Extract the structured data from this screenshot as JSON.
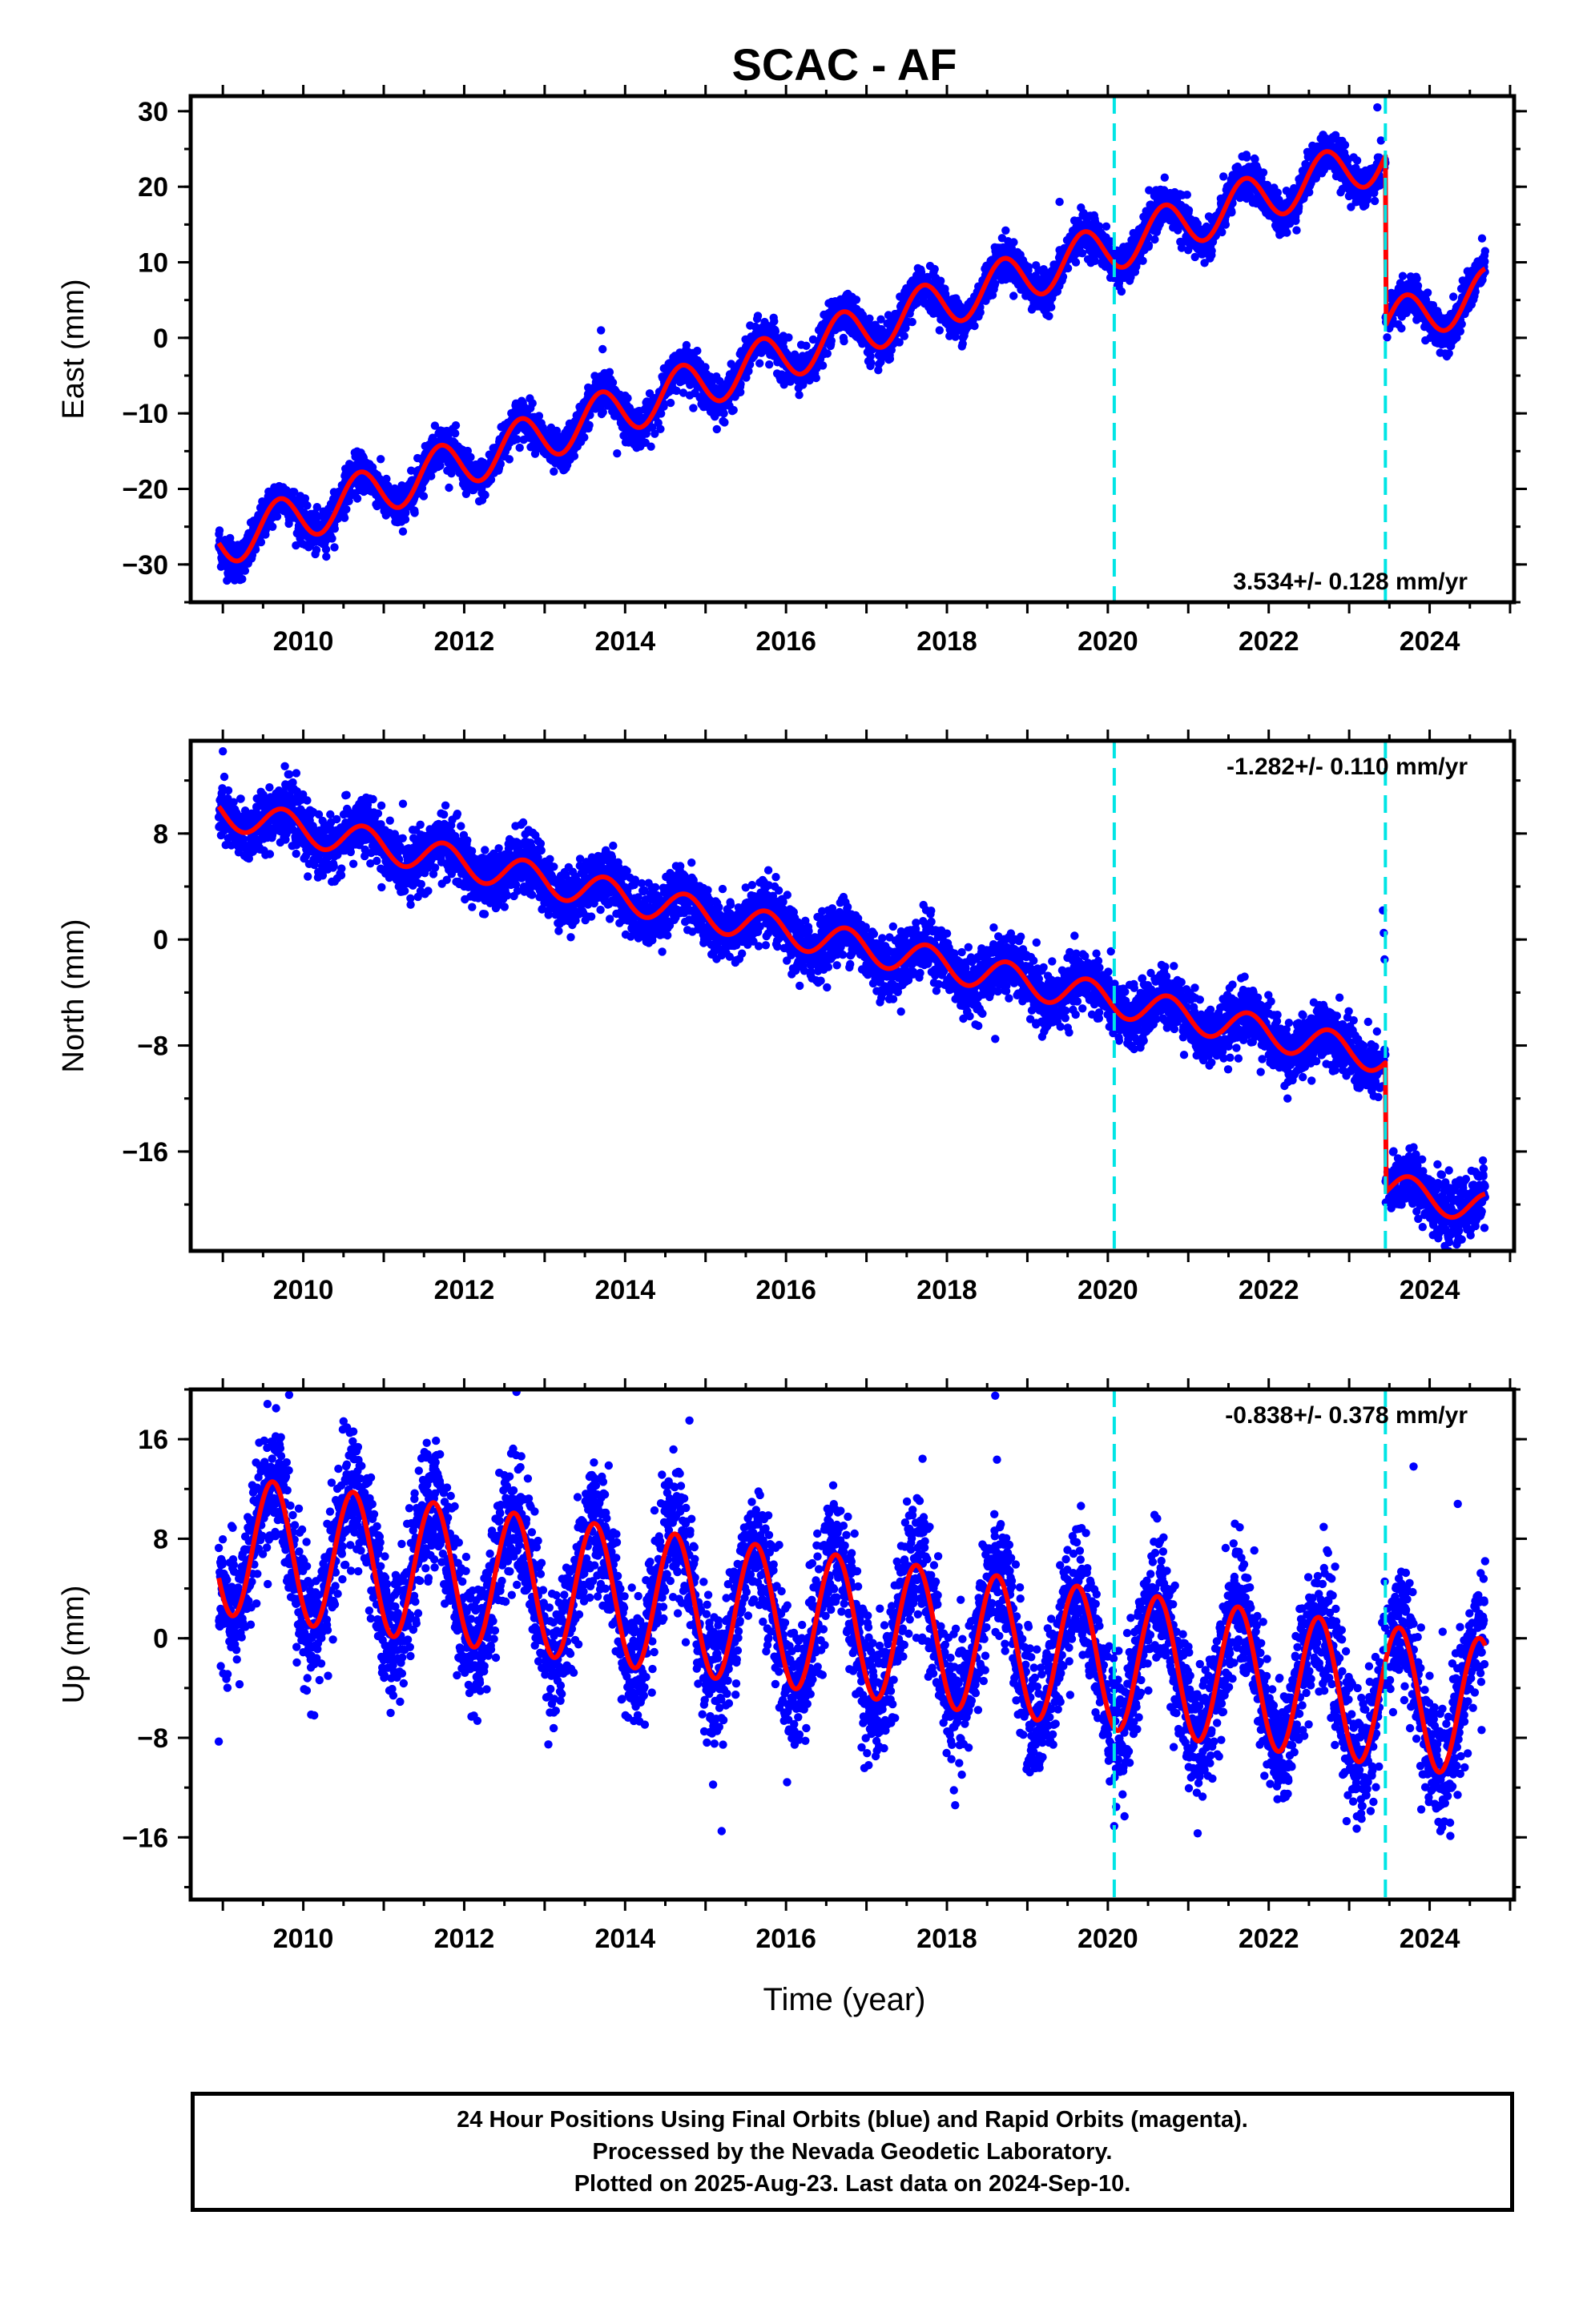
{
  "chart_data": {
    "type": "scatter",
    "title": "SCAC - AF",
    "xlabel": "Time (year)",
    "xlim": [
      2008.6,
      2025.05
    ],
    "x_ticks": [
      "2010",
      "2012",
      "2014",
      "2016",
      "2018",
      "2020",
      "2022",
      "2024"
    ],
    "x_tick_values": [
      2010,
      2012,
      2014,
      2016,
      2018,
      2020,
      2022,
      2024
    ],
    "data_range": [
      2008.95,
      2024.69
    ],
    "offset_lines": [
      2020.08,
      2023.45
    ],
    "offset_line_color": "#00e5e5",
    "point_color": "#0000ff",
    "model_color": "#ff0000",
    "grid": false,
    "panels": [
      {
        "name": "East",
        "ylabel": "East (mm)",
        "ylim": [
          -35,
          32
        ],
        "y_ticks": [
          "30",
          "20",
          "10",
          "0",
          "−10",
          "−20",
          "−30"
        ],
        "y_tick_values": [
          30,
          20,
          10,
          0,
          -10,
          -20,
          -30
        ],
        "rate_text": "3.534+/- 0.128 mm/yr",
        "rate_position": "bottom-right",
        "model": {
          "intercept": -27.0,
          "rate": 3.534,
          "annual_amplitude": 3.2,
          "annual_phase": 0.45,
          "steps": [
            [
              2023.45,
              -22.5
            ]
          ]
        },
        "scatter_sigma": 1.3,
        "outliers": [
          [
            2013.7,
            1.0
          ],
          [
            2013.72,
            -1.5
          ],
          [
            2019.4,
            18.0
          ],
          [
            2023.35,
            30.5
          ],
          [
            2013.9,
            -15.3
          ]
        ]
      },
      {
        "name": "North",
        "ylabel": "North (mm)",
        "ylim": [
          -23.5,
          15
        ],
        "y_ticks": [
          "8",
          "0",
          "−8",
          "−16"
        ],
        "y_tick_values": [
          8,
          0,
          -8,
          -16
        ],
        "rate_text": "-1.282+/- 0.110 mm/yr",
        "rate_position": "top-right",
        "model": {
          "intercept": 9.6,
          "rate": -1.282,
          "annual_amplitude": 1.2,
          "annual_phase": 0.5,
          "steps": [
            [
              2023.45,
              -9.8
            ]
          ]
        },
        "scatter_sigma": 1.1,
        "outliers": [
          [
            2009.0,
            14.2
          ],
          [
            2023.42,
            2.2
          ],
          [
            2023.43,
            0.5
          ],
          [
            2023.44,
            -1.5
          ],
          [
            2018.6,
            -7.5
          ],
          [
            2021.9,
            -10.0
          ]
        ]
      },
      {
        "name": "Up",
        "ylabel": "Up (mm)",
        "ylim": [
          -21,
          20
        ],
        "y_ticks": [
          "16",
          "8",
          "0",
          "−8",
          "−16"
        ],
        "y_tick_values": [
          16,
          8,
          0,
          -8,
          -16
        ],
        "rate_text": "-0.838+/- 0.378 mm/yr",
        "rate_position": "top-right",
        "model": {
          "intercept": 7.5,
          "rate": -0.838,
          "annual_amplitude": 5.6,
          "annual_phase": 0.37,
          "steps": []
        },
        "scatter_sigma": 2.6,
        "outliers": [
          [
            2018.6,
            19.5
          ],
          [
            2012.65,
            19.8
          ],
          [
            2014.8,
            17.5
          ],
          [
            2008.95,
            -8.3
          ],
          [
            2015.2,
            -15.5
          ],
          [
            2023.8,
            13.8
          ],
          [
            2024.35,
            10.8
          ]
        ]
      }
    ]
  },
  "footer": {
    "line1": "24 Hour Positions Using Final Orbits (blue) and Rapid Orbits (magenta).",
    "line2": "Processed by the Nevada Geodetic Laboratory.",
    "line3": "Plotted on 2025-Aug-23. Last data on 2024-Sep-10."
  }
}
